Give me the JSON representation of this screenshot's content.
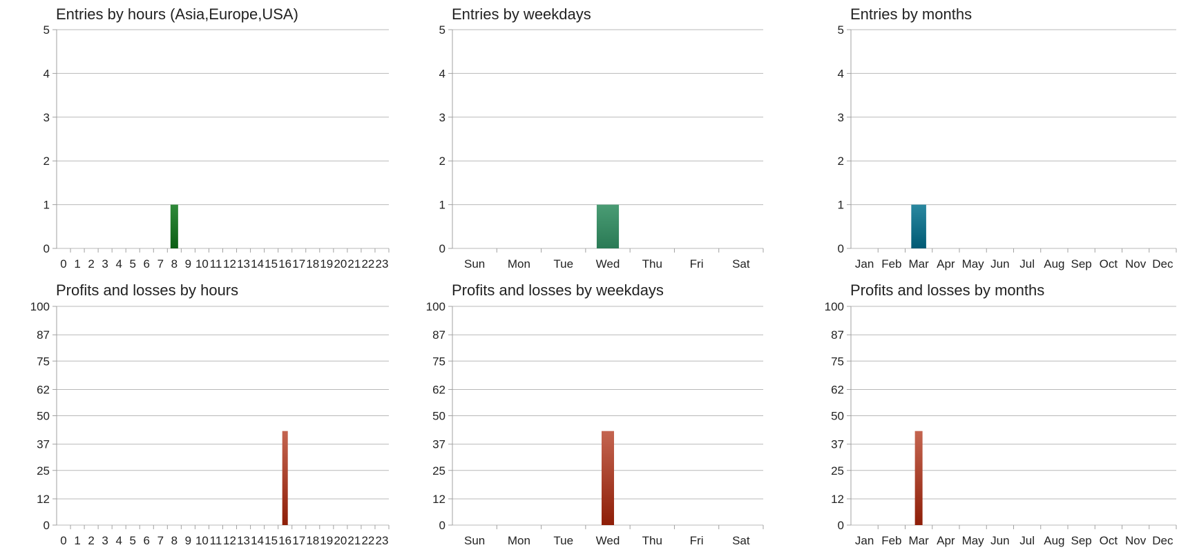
{
  "colors": {
    "entries_hours": [
      "#2f8a3a",
      "#0b5e14"
    ],
    "entries_weekdays": [
      "#4a9c74",
      "#2a7a55"
    ],
    "entries_months": [
      "#2a88a0",
      "#005a74"
    ],
    "profits": [
      "#c46550",
      "#8e1e08"
    ],
    "grid": "#b8b8b8",
    "axis": "#a0a0a0"
  },
  "chart_data": [
    {
      "id": "entries-by-hours",
      "type": "bar",
      "title": "Entries by hours (Asia,Europe,USA)",
      "categories": [
        "0",
        "1",
        "2",
        "3",
        "4",
        "5",
        "6",
        "7",
        "8",
        "9",
        "10",
        "11",
        "12",
        "13",
        "14",
        "15",
        "16",
        "17",
        "18",
        "19",
        "20",
        "21",
        "22",
        "23"
      ],
      "values": [
        0,
        0,
        0,
        0,
        0,
        0,
        0,
        0,
        1,
        0,
        0,
        0,
        0,
        0,
        0,
        0,
        0,
        0,
        0,
        0,
        0,
        0,
        0,
        0
      ],
      "yticks": [
        0,
        1,
        2,
        3,
        4,
        5
      ],
      "ylim": [
        0,
        5
      ],
      "color_key": "entries_hours",
      "bar_width": 0.55,
      "grid": true
    },
    {
      "id": "entries-by-weekdays",
      "type": "bar",
      "title": "Entries by weekdays",
      "categories": [
        "Sun",
        "Mon",
        "Tue",
        "Wed",
        "Thu",
        "Fri",
        "Sat"
      ],
      "values": [
        0,
        0,
        0,
        1,
        0,
        0,
        0
      ],
      "yticks": [
        0,
        1,
        2,
        3,
        4,
        5
      ],
      "ylim": [
        0,
        5
      ],
      "color_key": "entries_weekdays",
      "bar_width": 0.5,
      "grid": true
    },
    {
      "id": "entries-by-months",
      "type": "bar",
      "title": "Entries by months",
      "categories": [
        "Jan",
        "Feb",
        "Mar",
        "Apr",
        "May",
        "Jun",
        "Jul",
        "Aug",
        "Sep",
        "Oct",
        "Nov",
        "Dec"
      ],
      "values": [
        0,
        0,
        1,
        0,
        0,
        0,
        0,
        0,
        0,
        0,
        0,
        0
      ],
      "yticks": [
        0,
        1,
        2,
        3,
        4,
        5
      ],
      "ylim": [
        0,
        5
      ],
      "color_key": "entries_months",
      "bar_width": 0.55,
      "grid": true
    },
    {
      "id": "profits-by-hours",
      "type": "bar",
      "title": "Profits and losses by hours",
      "categories": [
        "0",
        "1",
        "2",
        "3",
        "4",
        "5",
        "6",
        "7",
        "8",
        "9",
        "10",
        "11",
        "12",
        "13",
        "14",
        "15",
        "16",
        "17",
        "18",
        "19",
        "20",
        "21",
        "22",
        "23"
      ],
      "values": [
        0,
        0,
        0,
        0,
        0,
        0,
        0,
        0,
        0,
        0,
        0,
        0,
        0,
        0,
        0,
        0,
        43,
        0,
        0,
        0,
        0,
        0,
        0,
        0
      ],
      "yticks": [
        0,
        12,
        25,
        37,
        50,
        62,
        75,
        87,
        100
      ],
      "ylim": [
        0,
        100
      ],
      "color_key": "profits",
      "bar_width": 0.4,
      "grid": true
    },
    {
      "id": "profits-by-weekdays",
      "type": "bar",
      "title": "Profits and losses by weekdays",
      "categories": [
        "Sun",
        "Mon",
        "Tue",
        "Wed",
        "Thu",
        "Fri",
        "Sat"
      ],
      "values": [
        0,
        0,
        0,
        43,
        0,
        0,
        0
      ],
      "yticks": [
        0,
        12,
        25,
        37,
        50,
        62,
        75,
        87,
        100
      ],
      "ylim": [
        0,
        100
      ],
      "color_key": "profits",
      "bar_width": 0.28,
      "grid": true
    },
    {
      "id": "profits-by-months",
      "type": "bar",
      "title": "Profits and losses by months",
      "categories": [
        "Jan",
        "Feb",
        "Mar",
        "Apr",
        "May",
        "Jun",
        "Jul",
        "Aug",
        "Sep",
        "Oct",
        "Nov",
        "Dec"
      ],
      "values": [
        0,
        0,
        43,
        0,
        0,
        0,
        0,
        0,
        0,
        0,
        0,
        0
      ],
      "yticks": [
        0,
        12,
        25,
        37,
        50,
        62,
        75,
        87,
        100
      ],
      "ylim": [
        0,
        100
      ],
      "color_key": "profits",
      "bar_width": 0.28,
      "grid": true
    }
  ]
}
